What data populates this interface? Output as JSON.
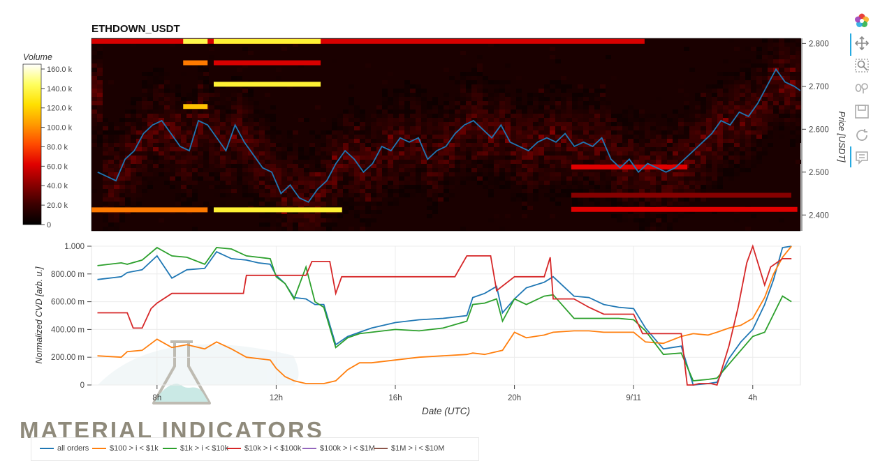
{
  "chart_data": [
    {
      "type": "heatmap",
      "title": "ETHDOWN_USDT",
      "ylabel": "Price [USDT]",
      "y_ticks": [
        "2.800",
        "2.700",
        "2.600",
        "2.500",
        "2.400"
      ],
      "y_tick_values": [
        2.8,
        2.7,
        2.6,
        2.5,
        2.4
      ],
      "ylim": [
        2.363,
        2.812
      ],
      "colorbar": {
        "label": "Volume",
        "ticks": [
          "160.0 k",
          "140.0 k",
          "120.0 k",
          "100.0 k",
          "80.0 k",
          "60.0 k",
          "40.0 k",
          "20.0 k",
          "0"
        ],
        "tick_values": [
          160000,
          140000,
          120000,
          100000,
          80000,
          60000,
          40000,
          20000,
          0
        ],
        "range": [
          0,
          165000
        ],
        "colors": [
          "#000000",
          "#3a0000",
          "#8b0000",
          "#e00000",
          "#ff4a00",
          "#ff9a00",
          "#ffe000",
          "#ffff60",
          "#ffffff"
        ]
      },
      "heatmap_x_range_hours": [
        5.8,
        29.0
      ],
      "notable_levels": [
        {
          "price": 2.805,
          "x_start": 5.8,
          "x_end": 23.9,
          "volume": 60000
        },
        {
          "price": 2.805,
          "x_start": 8.8,
          "x_end": 9.6,
          "volume": 140000
        },
        {
          "price": 2.805,
          "x_start": 9.8,
          "x_end": 13.3,
          "volume": 135000
        },
        {
          "price": 2.755,
          "x_start": 8.8,
          "x_end": 9.6,
          "volume": 95000
        },
        {
          "price": 2.755,
          "x_start": 9.8,
          "x_end": 13.3,
          "volume": 60000
        },
        {
          "price": 2.705,
          "x_start": 9.8,
          "x_end": 13.3,
          "volume": 135000
        },
        {
          "price": 2.653,
          "x_start": 8.8,
          "x_end": 9.6,
          "volume": 115000
        },
        {
          "price": 2.512,
          "x_start": 21.5,
          "x_end": 25.3,
          "volume": 62000
        },
        {
          "price": 2.446,
          "x_start": 21.5,
          "x_end": 28.7,
          "volume": 40000
        },
        {
          "price": 2.413,
          "x_start": 21.5,
          "x_end": 28.9,
          "volume": 62000
        },
        {
          "price": 2.412,
          "x_start": 5.8,
          "x_end": 9.6,
          "volume": 95000
        },
        {
          "price": 2.412,
          "x_start": 9.8,
          "x_end": 14.0,
          "volume": 135000
        }
      ],
      "series": [
        {
          "name": "Price",
          "color": "#1f77b4",
          "x": [
            6.0,
            6.3,
            6.6,
            6.9,
            7.2,
            7.5,
            7.8,
            8.1,
            8.4,
            8.7,
            9.0,
            9.3,
            9.6,
            9.9,
            10.2,
            10.5,
            10.8,
            11.1,
            11.4,
            11.7,
            12.0,
            12.3,
            12.6,
            12.9,
            13.2,
            13.5,
            13.8,
            14.1,
            14.4,
            14.7,
            15.0,
            15.3,
            15.6,
            15.9,
            16.2,
            16.5,
            16.8,
            17.1,
            17.4,
            17.7,
            18.0,
            18.3,
            18.6,
            18.9,
            19.2,
            19.5,
            19.8,
            20.1,
            20.4,
            20.7,
            21.0,
            21.3,
            21.6,
            21.9,
            22.2,
            22.5,
            22.8,
            23.1,
            23.4,
            23.7,
            24.0,
            24.3,
            24.6,
            24.9,
            25.2,
            25.5,
            25.8,
            26.1,
            26.4,
            26.7,
            27.0,
            27.3,
            27.6,
            27.9,
            28.2,
            28.5,
            28.8,
            29.0
          ],
          "values": [
            2.5,
            2.49,
            2.48,
            2.53,
            2.55,
            2.59,
            2.61,
            2.62,
            2.59,
            2.56,
            2.55,
            2.62,
            2.61,
            2.58,
            2.55,
            2.61,
            2.57,
            2.54,
            2.51,
            2.5,
            2.45,
            2.47,
            2.44,
            2.43,
            2.46,
            2.48,
            2.52,
            2.55,
            2.53,
            2.5,
            2.52,
            2.56,
            2.55,
            2.58,
            2.57,
            2.58,
            2.53,
            2.55,
            2.56,
            2.59,
            2.61,
            2.62,
            2.6,
            2.58,
            2.61,
            2.57,
            2.56,
            2.55,
            2.57,
            2.58,
            2.57,
            2.59,
            2.56,
            2.57,
            2.56,
            2.58,
            2.53,
            2.51,
            2.53,
            2.5,
            2.52,
            2.51,
            2.5,
            2.51,
            2.53,
            2.55,
            2.57,
            2.59,
            2.62,
            2.61,
            2.64,
            2.63,
            2.66,
            2.7,
            2.74,
            2.71,
            2.7,
            2.69
          ]
        }
      ]
    },
    {
      "type": "line",
      "xlabel": "Date (UTC)",
      "ylabel": "Normalized CVD [arb. u.]",
      "y_ticks": [
        "1.000",
        "800.00 m",
        "600.00 m",
        "400.00 m",
        "200.00 m",
        "0"
      ],
      "y_tick_values": [
        1.0,
        0.8,
        0.6,
        0.4,
        0.2,
        0
      ],
      "ylim": [
        0,
        1.0
      ],
      "x_ticks": [
        "8h",
        "12h",
        "16h",
        "20h",
        "9/11",
        "4h"
      ],
      "x_tick_values": [
        8,
        12,
        16,
        20,
        24,
        28
      ],
      "xlim": [
        5.8,
        29.6
      ],
      "series": [
        {
          "name": "all orders",
          "color": "#1f77b4",
          "x": [
            6.0,
            6.8,
            7.0,
            7.5,
            8.0,
            8.5,
            9.0,
            9.6,
            10.0,
            10.5,
            11.0,
            11.4,
            11.8,
            12.0,
            12.3,
            12.6,
            13.0,
            13.3,
            13.6,
            14.0,
            14.4,
            14.8,
            15.2,
            16.0,
            16.8,
            17.6,
            18.4,
            18.6,
            19.0,
            19.4,
            19.6,
            20.0,
            20.4,
            21.0,
            21.3,
            22.0,
            22.5,
            23.0,
            23.5,
            24.0,
            24.4,
            25.0,
            25.6,
            26.0,
            26.5,
            26.8,
            27.2,
            27.6,
            28.0,
            28.4,
            28.7,
            29.0,
            29.3
          ],
          "values": [
            0.76,
            0.78,
            0.81,
            0.83,
            0.93,
            0.77,
            0.83,
            0.84,
            0.96,
            0.91,
            0.9,
            0.88,
            0.87,
            0.79,
            0.73,
            0.63,
            0.62,
            0.58,
            0.58,
            0.29,
            0.35,
            0.38,
            0.41,
            0.45,
            0.47,
            0.48,
            0.5,
            0.63,
            0.66,
            0.71,
            0.52,
            0.62,
            0.7,
            0.74,
            0.78,
            0.64,
            0.63,
            0.58,
            0.56,
            0.55,
            0.41,
            0.26,
            0.28,
            0.0,
            0.01,
            0.02,
            0.19,
            0.31,
            0.4,
            0.58,
            0.76,
            0.99,
            1.0
          ]
        },
        {
          "name": "$100 > i < $1k",
          "color": "#ff7f0e",
          "x": [
            6.0,
            6.8,
            7.0,
            7.5,
            8.0,
            8.5,
            9.0,
            9.6,
            10.0,
            10.5,
            11.0,
            11.4,
            11.8,
            12.0,
            12.3,
            12.6,
            13.0,
            13.3,
            13.6,
            14.0,
            14.4,
            14.8,
            15.2,
            16.0,
            16.8,
            17.6,
            18.4,
            18.6,
            19.0,
            19.4,
            19.6,
            20.0,
            20.4,
            21.0,
            21.3,
            22.0,
            22.5,
            23.0,
            23.5,
            24.0,
            24.4,
            25.0,
            25.6,
            26.0,
            26.5,
            26.8,
            27.2,
            27.6,
            28.0,
            28.4,
            28.7,
            29.0,
            29.3
          ],
          "values": [
            0.21,
            0.2,
            0.24,
            0.25,
            0.33,
            0.27,
            0.29,
            0.26,
            0.31,
            0.26,
            0.2,
            0.19,
            0.18,
            0.12,
            0.06,
            0.03,
            0.01,
            0.01,
            0.01,
            0.03,
            0.11,
            0.16,
            0.16,
            0.18,
            0.2,
            0.21,
            0.22,
            0.23,
            0.22,
            0.24,
            0.25,
            0.38,
            0.34,
            0.36,
            0.38,
            0.39,
            0.39,
            0.38,
            0.38,
            0.38,
            0.31,
            0.3,
            0.35,
            0.37,
            0.36,
            0.38,
            0.41,
            0.43,
            0.48,
            0.63,
            0.8,
            0.92,
            1.0
          ]
        },
        {
          "name": "$1k > i < $10k",
          "color": "#2ca02c",
          "x": [
            6.0,
            6.8,
            7.0,
            7.5,
            8.0,
            8.5,
            9.0,
            9.6,
            10.0,
            10.5,
            11.0,
            11.4,
            11.8,
            12.0,
            12.3,
            12.6,
            13.0,
            13.3,
            13.6,
            14.0,
            14.4,
            14.8,
            15.2,
            16.0,
            16.8,
            17.6,
            18.4,
            18.6,
            19.0,
            19.4,
            19.6,
            20.0,
            20.4,
            21.0,
            21.3,
            22.0,
            22.5,
            23.0,
            23.5,
            24.0,
            24.4,
            25.0,
            25.6,
            26.0,
            26.5,
            26.8,
            27.2,
            27.6,
            28.0,
            28.4,
            28.7,
            29.0,
            29.3
          ],
          "values": [
            0.86,
            0.88,
            0.87,
            0.9,
            0.99,
            0.93,
            0.92,
            0.87,
            0.99,
            0.98,
            0.93,
            0.92,
            0.91,
            0.78,
            0.73,
            0.62,
            0.85,
            0.6,
            0.56,
            0.27,
            0.34,
            0.37,
            0.38,
            0.4,
            0.39,
            0.41,
            0.46,
            0.58,
            0.59,
            0.62,
            0.46,
            0.62,
            0.58,
            0.64,
            0.65,
            0.48,
            0.48,
            0.48,
            0.48,
            0.47,
            0.39,
            0.22,
            0.23,
            0.03,
            0.04,
            0.05,
            0.15,
            0.25,
            0.35,
            0.38,
            0.51,
            0.64,
            0.6
          ]
        },
        {
          "name": "$10k > i < $100k",
          "color": "#d62728",
          "x": [
            6.0,
            7.0,
            7.2,
            7.5,
            7.8,
            8.0,
            8.5,
            9.0,
            9.6,
            10.0,
            10.5,
            10.9,
            11.0,
            11.5,
            12.0,
            12.5,
            13.0,
            13.2,
            13.4,
            13.8,
            14.0,
            14.2,
            16.0,
            18.0,
            18.4,
            18.6,
            19.2,
            19.4,
            20.0,
            20.4,
            21.0,
            21.2,
            21.3,
            22.0,
            22.5,
            23.0,
            23.5,
            24.0,
            24.3,
            25.0,
            25.6,
            25.8,
            26.0,
            26.2,
            26.6,
            26.8,
            27.2,
            27.5,
            27.8,
            28.0,
            28.4,
            28.6,
            29.0,
            29.3
          ],
          "values": [
            0.52,
            0.52,
            0.41,
            0.41,
            0.55,
            0.59,
            0.66,
            0.66,
            0.66,
            0.66,
            0.66,
            0.66,
            0.79,
            0.79,
            0.79,
            0.79,
            0.79,
            0.89,
            0.89,
            0.89,
            0.66,
            0.78,
            0.78,
            0.78,
            0.93,
            0.93,
            0.93,
            0.68,
            0.78,
            0.78,
            0.78,
            0.92,
            0.62,
            0.62,
            0.56,
            0.51,
            0.51,
            0.51,
            0.37,
            0.37,
            0.37,
            0.0,
            0.0,
            0.01,
            0.01,
            0.0,
            0.28,
            0.55,
            0.88,
            1.0,
            0.72,
            0.85,
            0.91,
            0.91
          ]
        }
      ]
    }
  ],
  "legend": [
    {
      "label": "all orders",
      "color": "#1f77b4"
    },
    {
      "label": "$100 > i < $1k",
      "color": "#ff7f0e"
    },
    {
      "label": "$1k > i < $10k",
      "color": "#2ca02c"
    },
    {
      "label": "$10k > i < $100k",
      "color": "#d62728"
    },
    {
      "label": "$100k > i < $1M",
      "color": "#9467bd"
    },
    {
      "label": "$1M > i < $10M",
      "color": "#8c564b"
    }
  ],
  "toolbar": [
    {
      "icon": "bokeh-logo-icon"
    },
    {
      "icon": "pan-icon"
    },
    {
      "icon": "box-zoom-icon"
    },
    {
      "icon": "wheel-zoom-icon"
    },
    {
      "icon": "save-icon"
    },
    {
      "icon": "reset-icon"
    },
    {
      "icon": "hover-icon"
    }
  ],
  "watermark": "MATERIAL INDICATORS"
}
